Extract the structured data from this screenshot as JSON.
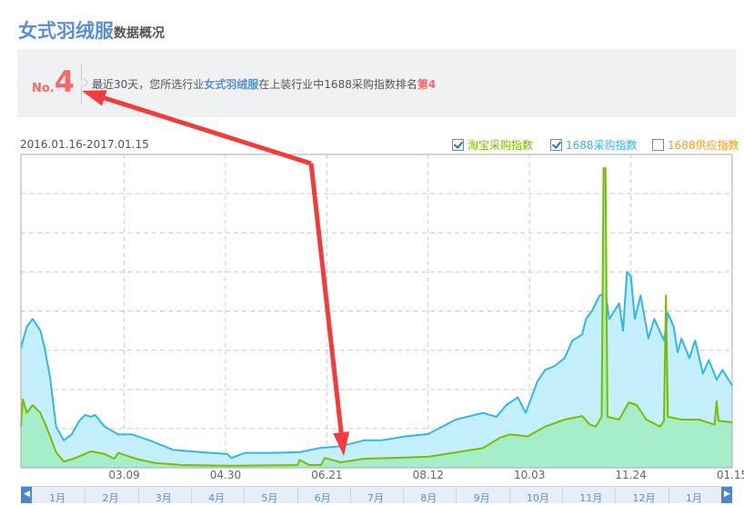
{
  "header": {
    "title_main": "女式羽绒服",
    "title_sub": "数据概况"
  },
  "rank": {
    "prefix": "No.",
    "number": "4",
    "text_before": "最近30天，您所选行业",
    "category": "女式羽绒服",
    "text_middle": "在上装行业中1688采购指数排名",
    "rank_text": "第4"
  },
  "date_range": "2016.01.16-2017.01.15",
  "legend": [
    {
      "label": "淘宝采购指数",
      "checked": true,
      "color": "#7dbb00"
    },
    {
      "label": "1688采购指数",
      "checked": true,
      "color": "#33b5ef"
    },
    {
      "label": "1688供应指数",
      "checked": false,
      "color": "#ff9a1e"
    }
  ],
  "chart_data": {
    "type": "area",
    "x_range": [
      "2016-01-16",
      "2017-01-15"
    ],
    "x_ticks": [
      "03.09",
      "04.30",
      "06.21",
      "08.12",
      "10.03",
      "11.24",
      "01.15"
    ],
    "y_axis_labels": "none",
    "grid": true,
    "series": [
      {
        "name": "1688采购指数",
        "color": "#33b5ef",
        "fill": "#c3f0fc",
        "points": [
          [
            "2016-01-16",
            3.06
          ],
          [
            "2016-01-19",
            3.6
          ],
          [
            "2016-01-22",
            3.8
          ],
          [
            "2016-01-26",
            3.5
          ],
          [
            "2016-01-28",
            3.1
          ],
          [
            "2016-01-31",
            2.3
          ],
          [
            "2016-02-03",
            1.05
          ],
          [
            "2016-02-07",
            0.7
          ],
          [
            "2016-02-11",
            0.85
          ],
          [
            "2016-02-15",
            1.2
          ],
          [
            "2016-02-18",
            1.35
          ],
          [
            "2016-02-21",
            1.3
          ],
          [
            "2016-02-23",
            1.35
          ],
          [
            "2016-02-28",
            1.05
          ],
          [
            "2016-03-06",
            0.85
          ],
          [
            "2016-03-13",
            0.85
          ],
          [
            "2016-03-22",
            0.7
          ],
          [
            "2016-04-03",
            0.46
          ],
          [
            "2016-04-17",
            0.4
          ],
          [
            "2016-05-01",
            0.35
          ],
          [
            "2016-05-03",
            0.25
          ],
          [
            "2016-05-10",
            0.38
          ],
          [
            "2016-05-24",
            0.38
          ],
          [
            "2016-06-07",
            0.4
          ],
          [
            "2016-06-17",
            0.5
          ],
          [
            "2016-06-28",
            0.55
          ],
          [
            "2016-07-10",
            0.7
          ],
          [
            "2016-07-19",
            0.7
          ],
          [
            "2016-07-31",
            0.8
          ],
          [
            "2016-08-12",
            0.86
          ],
          [
            "2016-08-26",
            1.23
          ],
          [
            "2016-09-09",
            1.4
          ],
          [
            "2016-09-16",
            1.3
          ],
          [
            "2016-09-21",
            1.6
          ],
          [
            "2016-09-27",
            1.8
          ],
          [
            "2016-10-01",
            1.4
          ],
          [
            "2016-10-07",
            2.2
          ],
          [
            "2016-10-11",
            2.5
          ],
          [
            "2016-10-16",
            2.6
          ],
          [
            "2016-10-21",
            2.8
          ],
          [
            "2016-10-25",
            3.25
          ],
          [
            "2016-10-30",
            3.4
          ],
          [
            "2016-11-01",
            3.8
          ],
          [
            "2016-11-04",
            4.0
          ],
          [
            "2016-11-08",
            4.4
          ],
          [
            "2016-11-11",
            4.45
          ],
          [
            "2016-11-13",
            3.8
          ],
          [
            "2016-11-18",
            4.2
          ],
          [
            "2016-11-20",
            3.5
          ],
          [
            "2016-11-22",
            5.0
          ],
          [
            "2016-11-24",
            4.9
          ],
          [
            "2016-11-26",
            3.8
          ],
          [
            "2016-11-29",
            4.4
          ],
          [
            "2016-12-03",
            3.3
          ],
          [
            "2016-12-06",
            3.8
          ],
          [
            "2016-12-11",
            3.25
          ],
          [
            "2016-12-13",
            3.95
          ],
          [
            "2016-12-16",
            3.6
          ],
          [
            "2016-12-18",
            2.95
          ],
          [
            "2016-12-20",
            3.3
          ],
          [
            "2016-12-24",
            2.8
          ],
          [
            "2016-12-27",
            3.25
          ],
          [
            "2016-12-31",
            2.4
          ],
          [
            "2017-01-03",
            2.75
          ],
          [
            "2017-01-07",
            2.25
          ],
          [
            "2017-01-10",
            2.5
          ],
          [
            "2017-01-15",
            2.1
          ]
        ]
      },
      {
        "name": "淘宝采购指数",
        "color": "#7dbb00",
        "fill": "#a6edc9",
        "points": [
          [
            "2016-01-16",
            1.05
          ],
          [
            "2016-01-17",
            1.75
          ],
          [
            "2016-01-19",
            1.4
          ],
          [
            "2016-01-22",
            1.6
          ],
          [
            "2016-01-26",
            1.4
          ],
          [
            "2016-01-29",
            1.05
          ],
          [
            "2016-01-31",
            0.8
          ],
          [
            "2016-02-03",
            0.4
          ],
          [
            "2016-02-07",
            0.16
          ],
          [
            "2016-02-12",
            0.23
          ],
          [
            "2016-02-21",
            0.42
          ],
          [
            "2016-02-28",
            0.35
          ],
          [
            "2016-03-04",
            0.23
          ],
          [
            "2016-03-06",
            0.38
          ],
          [
            "2016-03-15",
            0.23
          ],
          [
            "2016-03-25",
            0.12
          ],
          [
            "2016-04-08",
            0.07
          ],
          [
            "2016-05-01",
            0.05
          ],
          [
            "2016-06-06",
            0.07
          ],
          [
            "2016-06-07",
            0.2
          ],
          [
            "2016-06-12",
            0.07
          ],
          [
            "2016-06-18",
            0.07
          ],
          [
            "2016-06-20",
            0.25
          ],
          [
            "2016-06-28",
            0.14
          ],
          [
            "2016-07-10",
            0.23
          ],
          [
            "2016-07-24",
            0.25
          ],
          [
            "2016-08-12",
            0.28
          ],
          [
            "2016-08-21",
            0.35
          ],
          [
            "2016-09-09",
            0.5
          ],
          [
            "2016-09-18",
            0.77
          ],
          [
            "2016-09-23",
            0.85
          ],
          [
            "2016-10-02",
            0.8
          ],
          [
            "2016-10-11",
            1.05
          ],
          [
            "2016-10-21",
            1.23
          ],
          [
            "2016-10-30",
            1.32
          ],
          [
            "2016-11-03",
            1.1
          ],
          [
            "2016-11-06",
            1.05
          ],
          [
            "2016-11-09",
            1.3
          ],
          [
            "2016-11-10",
            7.65
          ],
          [
            "2016-11-11",
            7.65
          ],
          [
            "2016-11-12",
            1.3
          ],
          [
            "2016-11-18",
            1.23
          ],
          [
            "2016-11-23",
            1.67
          ],
          [
            "2016-11-27",
            1.6
          ],
          [
            "2016-12-02",
            1.23
          ],
          [
            "2016-12-09",
            1.05
          ],
          [
            "2016-12-11",
            1.2
          ],
          [
            "2016-12-12",
            4.4
          ],
          [
            "2016-12-13",
            1.3
          ],
          [
            "2016-12-20",
            1.23
          ],
          [
            "2016-12-29",
            1.23
          ],
          [
            "2017-01-06",
            1.1
          ],
          [
            "2017-01-07",
            1.7
          ],
          [
            "2017-01-08",
            1.2
          ],
          [
            "2017-01-15",
            1.16
          ]
        ]
      }
    ]
  },
  "slider": {
    "months": [
      "1月",
      "2月",
      "3月",
      "4月",
      "5月",
      "6月",
      "7月",
      "8月",
      "9月",
      "10月",
      "11月",
      "12月",
      "1月"
    ],
    "left_arrow": "◀",
    "right_arrow": "▶"
  },
  "annotation": {
    "arrow_color": "#f23b3b"
  }
}
